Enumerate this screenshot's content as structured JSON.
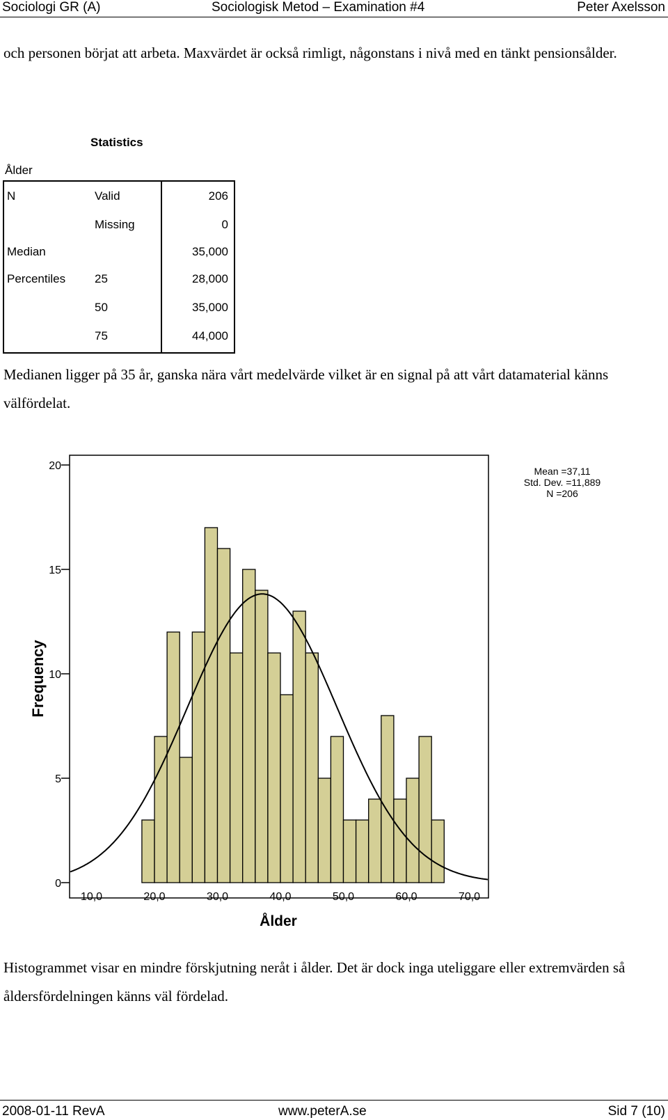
{
  "header": {
    "left": "Sociologi GR (A)",
    "center": "Sociologisk Metod – Examination #4",
    "right": "Peter Axelsson"
  },
  "text": {
    "intro": "och personen börjat att arbeta. Maxvärdet är också rimligt, någonstans i nivå med en tänkt pensionsålder.",
    "median_comment": "Medianen ligger på 35 år, ganska nära vårt medelvärde vilket är en signal på att vårt datamaterial känns välfördelat.",
    "histogram_comment": "Histogrammet visar en mindre förskjutning neråt i ålder. Det är dock inga uteliggare eller extremvärden så åldersfördelningen känns väl fördelad."
  },
  "statistics": {
    "title": "Statistics",
    "variable": "Ålder",
    "rows": [
      {
        "c1": "N",
        "c2": "Valid",
        "value": "206"
      },
      {
        "c1": "",
        "c2": "Missing",
        "value": "0"
      },
      {
        "c1": "Median",
        "c2": "",
        "value": "35,000"
      },
      {
        "c1": "Percentiles",
        "c2": "25",
        "value": "28,000"
      },
      {
        "c1": "",
        "c2": "50",
        "value": "35,000"
      },
      {
        "c1": "",
        "c2": "75",
        "value": "44,000"
      }
    ]
  },
  "chart_data": {
    "type": "bar",
    "xlabel": "Ålder",
    "ylabel": "Frequency",
    "ylim": [
      0,
      21
    ],
    "xlim": [
      0,
      75
    ],
    "y_ticks": [
      "0",
      "5",
      "10",
      "15",
      "20"
    ],
    "x_ticks": [
      "10,0",
      "20,0",
      "30,0",
      "40,0",
      "50,0",
      "60,0",
      "70,0"
    ],
    "x_tick_values": [
      10,
      20,
      30,
      40,
      50,
      60,
      70
    ],
    "bin_start": 18,
    "bin_width": 2,
    "values": [
      3,
      7,
      12,
      6,
      12,
      17,
      16,
      11,
      15,
      14,
      11,
      9,
      13,
      11,
      5,
      7,
      3,
      3,
      4,
      8,
      4,
      5,
      7,
      3
    ],
    "legend": [
      "Mean =37,11",
      "Std. Dev. =11,889",
      "N =206"
    ],
    "normal_curve": {
      "mean": 37.11,
      "sd": 11.889,
      "n": 206
    },
    "colors": {
      "bar": "#d4cf96",
      "plot_bg": "#ffffff",
      "stroke": "#000000"
    }
  },
  "footer": {
    "left": "2008-01-11 RevA",
    "center": "www.peterA.se",
    "right": "Sid 7 (10)"
  }
}
